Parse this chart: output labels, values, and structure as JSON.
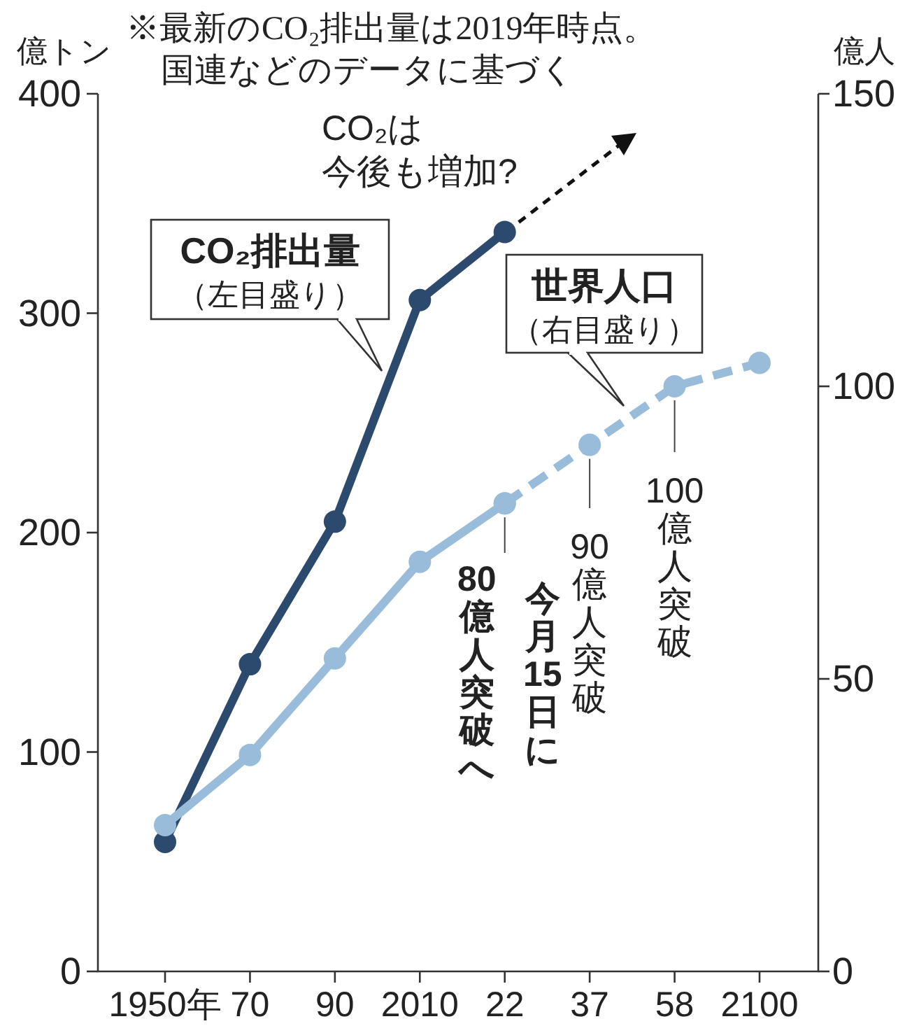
{
  "chart_data": {
    "type": "line",
    "title": "※最新のCO₂排出量は2019年時点。",
    "subtitle": "国連などのデータに基づく",
    "ylabel": "億トン",
    "y2label": "億人",
    "categories": [
      "1950年",
      "70",
      "90",
      "2010",
      "22",
      "37",
      "58",
      "2100"
    ],
    "series": [
      {
        "color": "#2c4a6e",
        "values": [
          59,
          140,
          205,
          306,
          337,
          null,
          null,
          null
        ],
        "line_style": "solid"
      },
      {
        "color": "#98bcd9",
        "values": [
          25,
          37,
          53.5,
          70,
          80,
          null,
          null,
          null
        ],
        "axis": "y2",
        "line_style": "solid"
      },
      {
        "color": "#98bcd9",
        "values": [
          null,
          null,
          null,
          null,
          80,
          90,
          100,
          104
        ],
        "axis": "y2",
        "line_style": "dashed"
      }
    ],
    "ylim": [
      0,
      400
    ],
    "yticks": [
      0,
      100,
      200,
      300,
      400
    ],
    "y2lim": [
      0,
      150
    ],
    "y2ticks": [
      0,
      50,
      100,
      150
    ],
    "marker": "circle",
    "annotations": [
      "CO₂は今後も増加?",
      "CO₂排出量",
      "（左目盛り）",
      "世界人口",
      "（右目盛り）",
      "今月15日に",
      "80億人突破へ",
      "90億人突破",
      "100億人突破"
    ]
  }
}
